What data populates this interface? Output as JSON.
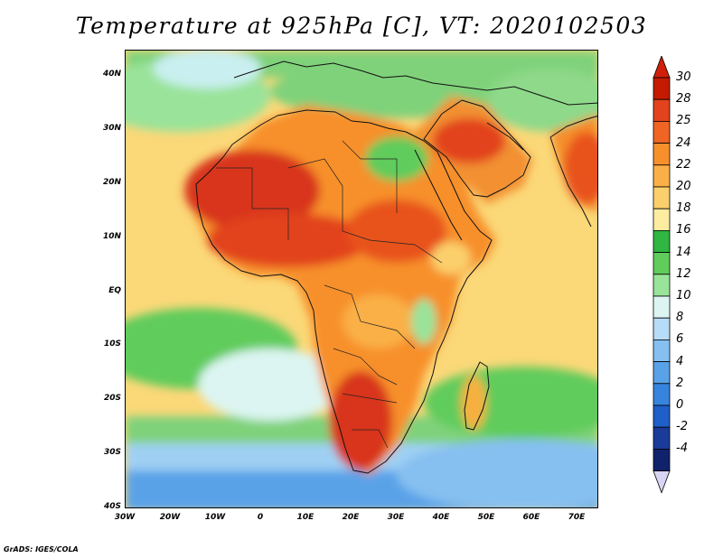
{
  "title": "Temperature at 925hPa [C], VT: 2020102503",
  "credit": "GrADS: IGES/COLA",
  "map": {
    "lon_range": [
      -30,
      75
    ],
    "lat_range": [
      -40,
      45
    ],
    "y_ticks": [
      "40N",
      "30N",
      "20N",
      "10N",
      "EQ",
      "10S",
      "20S",
      "30S",
      "40S"
    ],
    "x_ticks": [
      "30W",
      "20W",
      "10W",
      "0",
      "10E",
      "20E",
      "30E",
      "40E",
      "50E",
      "60E",
      "70E"
    ]
  },
  "colorbar": {
    "labels": [
      "30",
      "28",
      "25",
      "24",
      "22",
      "20",
      "18",
      "16",
      "14",
      "12",
      "10",
      "8",
      "6",
      "4",
      "2",
      "0",
      "-2",
      "-4"
    ],
    "colors": [
      "#c41a00",
      "#e2431c",
      "#f06424",
      "#f7902c",
      "#fab046",
      "#fbd06c",
      "#fdeda0",
      "#2fb643",
      "#60cc5c",
      "#9ae39a",
      "#dcf5f2",
      "#b7dcf8",
      "#86c0f0",
      "#5aa2e8",
      "#3784de",
      "#1f5fc9",
      "#1a3b98",
      "#10226b"
    ],
    "top_arrow_color": "#d0200a",
    "bottom_arrow_color": "#d8d4f4"
  },
  "legend_meaning": {
    "hot": "#e04a1c",
    "warm": "#f8b44a",
    "mild": "#fdeda0",
    "cool": "#7fd27a",
    "cold": "#5aa2e8"
  }
}
